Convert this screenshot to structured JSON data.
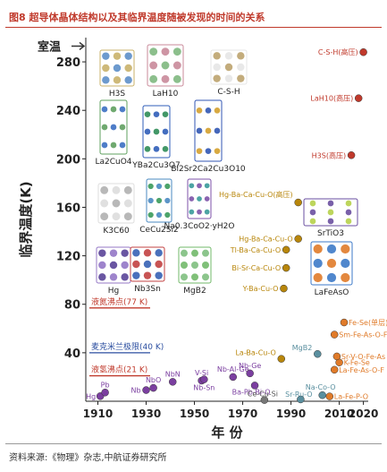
{
  "header": {
    "title": "图8 超导体晶体结构以及其临界温度随被发现的时间的关系"
  },
  "footer": {
    "source": "资料来源:《物理》杂志,中航证券研究所"
  },
  "chart_data": {
    "type": "scatter",
    "xlabel": "年 份",
    "ylabel": "临界温度(K)",
    "xlim": [
      1905,
      2022
    ],
    "ylim": [
      0,
      300
    ],
    "xticks": [
      1910,
      1930,
      1950,
      1970,
      1990,
      2010,
      2020
    ],
    "yticks": [
      40,
      80,
      120,
      160,
      200,
      240,
      280
    ],
    "reference_lines": [
      {
        "label": "室温",
        "value": 293,
        "color": "#333333"
      },
      {
        "label": "液氮沸点(77 K)",
        "value": 77,
        "color": "#c0392b"
      },
      {
        "label": "麦克米兰极限(40 K)",
        "value": 40,
        "color": "#2c4fa0"
      },
      {
        "label": "液氢沸点(21 K)",
        "value": 21,
        "color": "#c0392b"
      }
    ],
    "points": [
      {
        "label": "Hg",
        "x": 1911,
        "y": 4.2,
        "color": "#7b3fa0"
      },
      {
        "label": "Pb",
        "x": 1913,
        "y": 7.2,
        "color": "#7b3fa0"
      },
      {
        "label": "Nb",
        "x": 1930,
        "y": 9.2,
        "color": "#7b3fa0"
      },
      {
        "label": "NbO",
        "x": 1933,
        "y": 11,
        "color": "#7b3fa0"
      },
      {
        "label": "NbN",
        "x": 1941,
        "y": 16,
        "color": "#7b3fa0"
      },
      {
        "label": "V-Si",
        "x": 1953,
        "y": 17,
        "color": "#7b3fa0"
      },
      {
        "label": "Nb-Sn",
        "x": 1954,
        "y": 18,
        "color": "#7b3fa0"
      },
      {
        "label": "Nb-Al-Ge",
        "x": 1966,
        "y": 20,
        "color": "#7b3fa0"
      },
      {
        "label": "Nb-Ge",
        "x": 1973,
        "y": 23,
        "color": "#7b3fa0"
      },
      {
        "label": "Ba-Pb-Bi-O",
        "x": 1975,
        "y": 13,
        "color": "#7b3fa0"
      },
      {
        "label": "Ce-Cu-Si",
        "x": 1979,
        "y": 1,
        "color": "#777777"
      },
      {
        "label": "La-Ba-Cu-O",
        "x": 1986,
        "y": 35,
        "color": "#b8860b"
      },
      {
        "label": "Y-Ba-Cu-O",
        "x": 1987,
        "y": 93,
        "color": "#b8860b"
      },
      {
        "label": "Bi-Sr-Ca-Cu-O",
        "x": 1988,
        "y": 110,
        "color": "#b8860b"
      },
      {
        "label": "Tl-Ba-Ca-Cu-O",
        "x": 1988,
        "y": 125,
        "color": "#b8860b"
      },
      {
        "label": "Hg-Ba-Ca-Cu-O",
        "x": 1993,
        "y": 134,
        "color": "#b8860b"
      },
      {
        "label": "Hg-Ba-Ca-Cu-O(高压)",
        "x": 1993,
        "y": 164,
        "color": "#b8860b"
      },
      {
        "label": "Sr-Ru-O",
        "x": 1994,
        "y": 1.5,
        "color": "#5a8f9f"
      },
      {
        "label": "MgB2",
        "x": 2001,
        "y": 39,
        "color": "#5a8f9f"
      },
      {
        "label": "Na-Co-O",
        "x": 2003,
        "y": 5,
        "color": "#5a8f9f"
      },
      {
        "label": "La-Fe-P-O",
        "x": 2006,
        "y": 4,
        "color": "#e07b2a"
      },
      {
        "label": "La-Fe-As-O-F",
        "x": 2008,
        "y": 26,
        "color": "#e07b2a"
      },
      {
        "label": "K-Fe-Se",
        "x": 2010,
        "y": 32,
        "color": "#e07b2a"
      },
      {
        "label": "Sr-V-O-Fe-As",
        "x": 2009,
        "y": 37,
        "color": "#e07b2a"
      },
      {
        "label": "Sm-Fe-As-O-F",
        "x": 2008,
        "y": 55,
        "color": "#e07b2a"
      },
      {
        "label": "Fe-Se(单层)",
        "x": 2012,
        "y": 65,
        "color": "#e07b2a"
      },
      {
        "label": "H3S(高压)",
        "x": 2015,
        "y": 203,
        "color": "#c0392b"
      },
      {
        "label": "LaH10(高压)",
        "x": 2018,
        "y": 250,
        "color": "#c0392b"
      },
      {
        "label": "C-S-H(高压)",
        "x": 2020,
        "y": 288,
        "color": "#c0392b"
      }
    ],
    "structures": [
      "H3S",
      "LaH10",
      "C-S-H",
      "La2CuO4",
      "YBa2Cu3O7",
      "Bi2Sr2Ca2Cu3O10",
      "K3C60",
      "CeCu2Si2",
      "Na0.3CoO2·yH2O",
      "Hg",
      "Nb3Sn",
      "MgB2",
      "SrTiO3",
      "LaFeAsO"
    ]
  }
}
